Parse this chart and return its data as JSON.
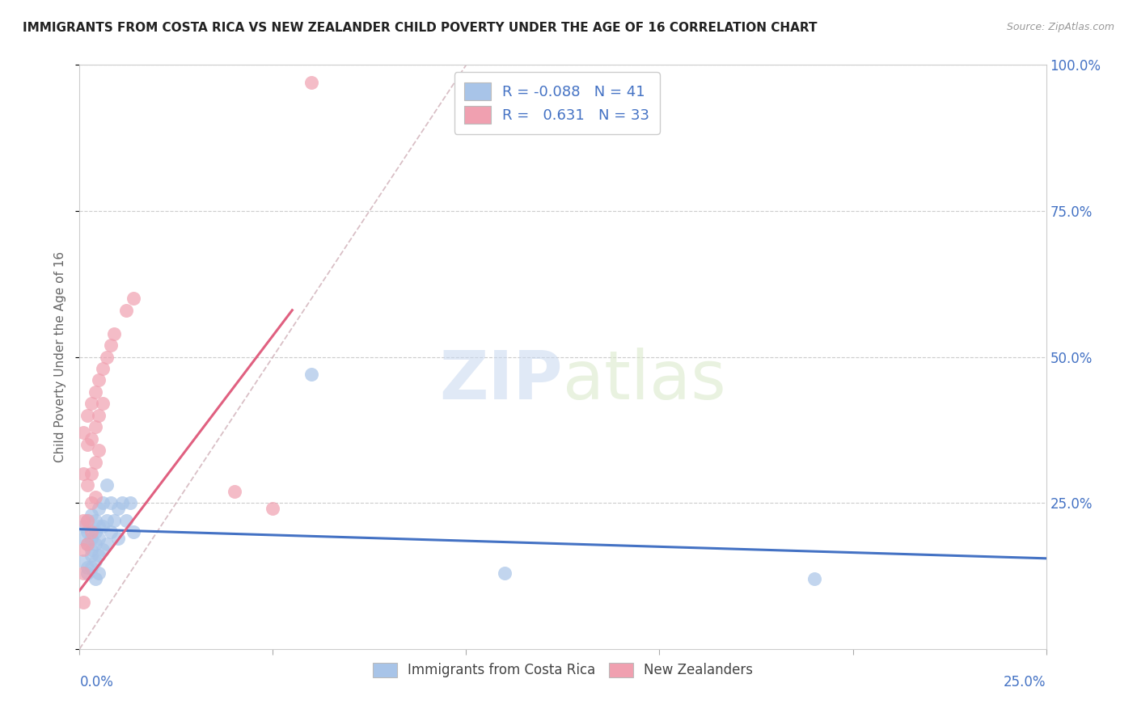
{
  "title": "IMMIGRANTS FROM COSTA RICA VS NEW ZEALANDER CHILD POVERTY UNDER THE AGE OF 16 CORRELATION CHART",
  "source": "Source: ZipAtlas.com",
  "ylabel": "Child Poverty Under the Age of 16",
  "xlim": [
    0.0,
    0.25
  ],
  "ylim": [
    0.0,
    1.0
  ],
  "yticks": [
    0.0,
    0.25,
    0.5,
    0.75,
    1.0
  ],
  "ytick_labels": [
    "",
    "25.0%",
    "50.0%",
    "75.0%",
    "100.0%"
  ],
  "xtick_labels": [
    "0.0%",
    "",
    "",
    "",
    "",
    "25.0%"
  ],
  "blue_color": "#A8C4E8",
  "pink_color": "#F0A0B0",
  "blue_line_color": "#4472C4",
  "pink_line_color": "#E06080",
  "diag_color": "#D0B0B8",
  "label_color": "#4472C4",
  "blue_scatter": [
    [
      0.001,
      0.21
    ],
    [
      0.001,
      0.19
    ],
    [
      0.002,
      0.22
    ],
    [
      0.002,
      0.2
    ],
    [
      0.002,
      0.18
    ],
    [
      0.003,
      0.23
    ],
    [
      0.003,
      0.19
    ],
    [
      0.003,
      0.17
    ],
    [
      0.004,
      0.22
    ],
    [
      0.004,
      0.2
    ],
    [
      0.004,
      0.18
    ],
    [
      0.005,
      0.24
    ],
    [
      0.005,
      0.21
    ],
    [
      0.005,
      0.19
    ],
    [
      0.006,
      0.25
    ],
    [
      0.006,
      0.21
    ],
    [
      0.006,
      0.17
    ],
    [
      0.007,
      0.28
    ],
    [
      0.007,
      0.22
    ],
    [
      0.007,
      0.18
    ],
    [
      0.008,
      0.25
    ],
    [
      0.008,
      0.2
    ],
    [
      0.009,
      0.22
    ],
    [
      0.01,
      0.24
    ],
    [
      0.01,
      0.19
    ],
    [
      0.011,
      0.25
    ],
    [
      0.012,
      0.22
    ],
    [
      0.013,
      0.25
    ],
    [
      0.014,
      0.2
    ],
    [
      0.001,
      0.15
    ],
    [
      0.002,
      0.14
    ],
    [
      0.002,
      0.13
    ],
    [
      0.003,
      0.16
    ],
    [
      0.003,
      0.14
    ],
    [
      0.004,
      0.15
    ],
    [
      0.004,
      0.12
    ],
    [
      0.005,
      0.16
    ],
    [
      0.005,
      0.13
    ],
    [
      0.06,
      0.47
    ],
    [
      0.11,
      0.13
    ],
    [
      0.19,
      0.12
    ]
  ],
  "pink_scatter": [
    [
      0.001,
      0.37
    ],
    [
      0.001,
      0.3
    ],
    [
      0.001,
      0.22
    ],
    [
      0.001,
      0.17
    ],
    [
      0.001,
      0.13
    ],
    [
      0.001,
      0.08
    ],
    [
      0.002,
      0.4
    ],
    [
      0.002,
      0.35
    ],
    [
      0.002,
      0.28
    ],
    [
      0.002,
      0.22
    ],
    [
      0.002,
      0.18
    ],
    [
      0.003,
      0.42
    ],
    [
      0.003,
      0.36
    ],
    [
      0.003,
      0.3
    ],
    [
      0.003,
      0.25
    ],
    [
      0.003,
      0.2
    ],
    [
      0.004,
      0.44
    ],
    [
      0.004,
      0.38
    ],
    [
      0.004,
      0.32
    ],
    [
      0.004,
      0.26
    ],
    [
      0.005,
      0.46
    ],
    [
      0.005,
      0.4
    ],
    [
      0.005,
      0.34
    ],
    [
      0.006,
      0.48
    ],
    [
      0.006,
      0.42
    ],
    [
      0.007,
      0.5
    ],
    [
      0.008,
      0.52
    ],
    [
      0.009,
      0.54
    ],
    [
      0.012,
      0.58
    ],
    [
      0.014,
      0.6
    ],
    [
      0.04,
      0.27
    ],
    [
      0.05,
      0.24
    ],
    [
      0.06,
      0.97
    ]
  ],
  "blue_line_x": [
    0.0,
    0.25
  ],
  "blue_line_y": [
    0.205,
    0.155
  ],
  "pink_line_x": [
    0.0,
    0.055
  ],
  "pink_line_y": [
    0.1,
    0.58
  ],
  "diag_line_x": [
    0.0,
    0.1
  ],
  "diag_line_y": [
    0.0,
    1.0
  ],
  "watermark_zip": "ZIP",
  "watermark_atlas": "atlas",
  "background_color": "#FFFFFF"
}
